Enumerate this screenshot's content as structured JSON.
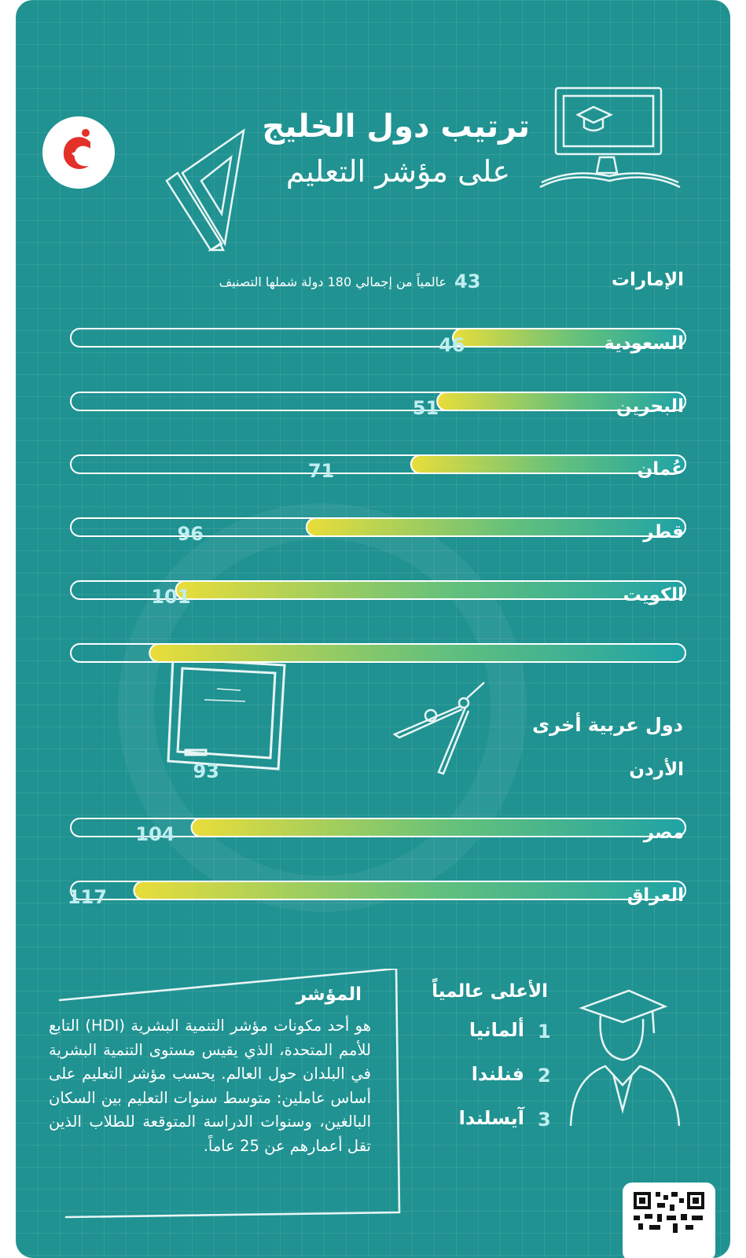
{
  "header": {
    "title_line1": "ترتيب دول الخليج",
    "title_line2": "على مؤشر التعليم"
  },
  "gulf": {
    "note": "عالمياً من إجمالي 180 دولة شملها التصنيف"
  },
  "others": {
    "heading": "دول عربية أخرى"
  },
  "chart_data": {
    "type": "bar",
    "categories": [
      "الإمارات",
      "السعودية",
      "البحرين",
      "عُمان",
      "قطر",
      "الكويت",
      "الأردن",
      "مصر",
      "العراق"
    ],
    "values": [
      43,
      46,
      51,
      71,
      96,
      101,
      93,
      104,
      117
    ]
  },
  "indicator": {
    "title": "المؤشر",
    "text": "هو أحد مكونات مؤشر التنمية البشرية (HDI) التابع للأمم المتحدة، الذي يقيس مستوى التنمية البشرية في البلدان حول العالم. يحسب مؤشر التعليم على أساس عاملين: متوسط سنوات التعليم بين السكان البالغين، وسنوات الدراسة المتوقعة للطلاب الذين تقل أعمارهم عن 25 عاماً."
  },
  "top": {
    "title": "الأعلى عالمياً",
    "items": [
      {
        "rank": "1",
        "name": "ألمانيا"
      },
      {
        "rank": "2",
        "name": "فنلندا"
      },
      {
        "rank": "3",
        "name": "آيسلندا"
      }
    ]
  },
  "colors": {
    "background": "#1f9291",
    "bar_teal": "#1fa3a6",
    "bar_yellow": "#e9dd3a"
  }
}
